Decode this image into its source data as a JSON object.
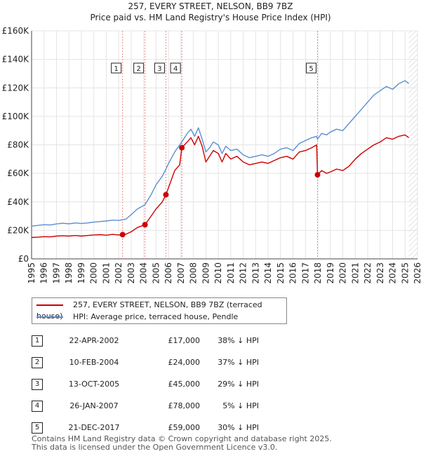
{
  "chart_data": {
    "type": "line",
    "title": "257, EVERY STREET, NELSON, BB9 7BZ",
    "subtitle": "Price paid vs. HM Land Registry's House Price Index (HPI)",
    "xlim": [
      1995,
      2026
    ],
    "ylim": [
      0,
      160000
    ],
    "y_ticks": [
      {
        "value": 0,
        "label": "£0"
      },
      {
        "value": 20000,
        "label": "£20K"
      },
      {
        "value": 40000,
        "label": "£40K"
      },
      {
        "value": 60000,
        "label": "£60K"
      },
      {
        "value": 80000,
        "label": "£80K"
      },
      {
        "value": 100000,
        "label": "£100K"
      },
      {
        "value": 120000,
        "label": "£120K"
      },
      {
        "value": 140000,
        "label": "£140K"
      },
      {
        "value": 160000,
        "label": "£160K"
      }
    ],
    "x_ticks": [
      "1995",
      "1996",
      "1997",
      "1998",
      "1999",
      "2000",
      "2001",
      "2002",
      "2003",
      "2004",
      "2005",
      "2006",
      "2007",
      "2008",
      "2009",
      "2010",
      "2011",
      "2012",
      "2013",
      "2014",
      "2015",
      "2016",
      "2017",
      "2018",
      "2019",
      "2020",
      "2021",
      "2022",
      "2023",
      "2024",
      "2025",
      "2026"
    ],
    "series": [
      {
        "name": "257, EVERY STREET, NELSON, BB9 7BZ (terraced house)",
        "color": "#cc0000",
        "points": [
          [
            1995.0,
            15000
          ],
          [
            1995.5,
            15200
          ],
          [
            1996.0,
            15600
          ],
          [
            1996.5,
            15400
          ],
          [
            1997.0,
            16000
          ],
          [
            1997.5,
            16200
          ],
          [
            1998.0,
            16000
          ],
          [
            1998.5,
            16400
          ],
          [
            1999.0,
            16000
          ],
          [
            1999.5,
            16400
          ],
          [
            2000.0,
            16800
          ],
          [
            2000.5,
            17000
          ],
          [
            2001.0,
            16600
          ],
          [
            2001.5,
            17200
          ],
          [
            2002.0,
            16800
          ],
          [
            2002.31,
            17000
          ],
          [
            2002.6,
            17400
          ],
          [
            2003.0,
            19000
          ],
          [
            2003.5,
            22000
          ],
          [
            2004.11,
            24000
          ],
          [
            2004.6,
            30000
          ],
          [
            2005.0,
            35000
          ],
          [
            2005.5,
            40000
          ],
          [
            2005.79,
            45000
          ],
          [
            2006.0,
            50000
          ],
          [
            2006.5,
            62000
          ],
          [
            2006.9,
            66000
          ],
          [
            2007.07,
            78000
          ],
          [
            2007.5,
            82000
          ],
          [
            2007.8,
            85000
          ],
          [
            2008.1,
            80000
          ],
          [
            2008.4,
            86000
          ],
          [
            2008.7,
            79000
          ],
          [
            2009.0,
            68000
          ],
          [
            2009.3,
            72000
          ],
          [
            2009.6,
            76000
          ],
          [
            2010.0,
            74000
          ],
          [
            2010.3,
            68000
          ],
          [
            2010.6,
            74000
          ],
          [
            2011.0,
            70000
          ],
          [
            2011.5,
            72000
          ],
          [
            2012.0,
            68000
          ],
          [
            2012.5,
            66000
          ],
          [
            2013.0,
            67000
          ],
          [
            2013.5,
            68000
          ],
          [
            2014.0,
            67000
          ],
          [
            2014.5,
            69000
          ],
          [
            2015.0,
            71000
          ],
          [
            2015.5,
            72000
          ],
          [
            2016.0,
            70000
          ],
          [
            2016.5,
            75000
          ],
          [
            2017.0,
            76000
          ],
          [
            2017.5,
            78000
          ],
          [
            2017.9,
            80000
          ],
          [
            2017.97,
            59000
          ],
          [
            2018.3,
            62000
          ],
          [
            2018.7,
            60000
          ],
          [
            2019.0,
            61000
          ],
          [
            2019.5,
            63000
          ],
          [
            2020.0,
            62000
          ],
          [
            2020.5,
            65000
          ],
          [
            2021.0,
            70000
          ],
          [
            2021.5,
            74000
          ],
          [
            2022.0,
            77000
          ],
          [
            2022.5,
            80000
          ],
          [
            2023.0,
            82000
          ],
          [
            2023.5,
            85000
          ],
          [
            2024.0,
            84000
          ],
          [
            2024.5,
            86000
          ],
          [
            2025.0,
            87000
          ],
          [
            2025.3,
            85000
          ]
        ]
      },
      {
        "name": "HPI: Average price, terraced house, Pendle",
        "color": "#5b8fd0",
        "points": [
          [
            1995.0,
            23000
          ],
          [
            1995.5,
            23500
          ],
          [
            1996.0,
            24000
          ],
          [
            1996.5,
            23800
          ],
          [
            1997.0,
            24500
          ],
          [
            1997.5,
            25000
          ],
          [
            1998.0,
            24600
          ],
          [
            1998.5,
            25200
          ],
          [
            1999.0,
            24800
          ],
          [
            1999.5,
            25200
          ],
          [
            2000.0,
            25800
          ],
          [
            2000.5,
            26200
          ],
          [
            2001.0,
            26600
          ],
          [
            2001.5,
            27200
          ],
          [
            2002.0,
            27000
          ],
          [
            2002.31,
            27400
          ],
          [
            2002.6,
            28000
          ],
          [
            2003.0,
            31000
          ],
          [
            2003.5,
            35000
          ],
          [
            2004.11,
            38000
          ],
          [
            2004.6,
            45000
          ],
          [
            2005.0,
            52000
          ],
          [
            2005.5,
            58000
          ],
          [
            2005.79,
            63000
          ],
          [
            2006.0,
            67000
          ],
          [
            2006.5,
            75000
          ],
          [
            2006.9,
            80000
          ],
          [
            2007.07,
            82000
          ],
          [
            2007.5,
            88000
          ],
          [
            2007.8,
            91000
          ],
          [
            2008.1,
            86000
          ],
          [
            2008.4,
            92000
          ],
          [
            2008.7,
            84000
          ],
          [
            2009.0,
            75000
          ],
          [
            2009.3,
            78000
          ],
          [
            2009.6,
            82000
          ],
          [
            2010.0,
            80000
          ],
          [
            2010.3,
            74000
          ],
          [
            2010.6,
            79000
          ],
          [
            2011.0,
            76000
          ],
          [
            2011.5,
            77000
          ],
          [
            2012.0,
            73000
          ],
          [
            2012.5,
            71000
          ],
          [
            2013.0,
            72000
          ],
          [
            2013.5,
            73000
          ],
          [
            2014.0,
            72000
          ],
          [
            2014.5,
            74000
          ],
          [
            2015.0,
            77000
          ],
          [
            2015.5,
            78000
          ],
          [
            2016.0,
            76000
          ],
          [
            2016.5,
            81000
          ],
          [
            2017.0,
            83000
          ],
          [
            2017.5,
            85000
          ],
          [
            2017.9,
            86000
          ],
          [
            2017.97,
            84000
          ],
          [
            2018.3,
            88000
          ],
          [
            2018.7,
            87000
          ],
          [
            2019.0,
            89000
          ],
          [
            2019.5,
            91000
          ],
          [
            2020.0,
            90000
          ],
          [
            2020.5,
            95000
          ],
          [
            2021.0,
            100000
          ],
          [
            2021.5,
            105000
          ],
          [
            2022.0,
            110000
          ],
          [
            2022.5,
            115000
          ],
          [
            2023.0,
            118000
          ],
          [
            2023.5,
            121000
          ],
          [
            2024.0,
            119000
          ],
          [
            2024.5,
            123000
          ],
          [
            2025.0,
            125000
          ],
          [
            2025.3,
            123000
          ]
        ]
      }
    ],
    "sales": [
      {
        "n": "1",
        "x": 2002.31,
        "price": 17000
      },
      {
        "n": "2",
        "x": 2004.11,
        "price": 24000
      },
      {
        "n": "3",
        "x": 2005.79,
        "price": 45000
      },
      {
        "n": "4",
        "x": 2007.07,
        "price": 78000
      },
      {
        "n": "5",
        "x": 2017.97,
        "price": 59000
      }
    ]
  },
  "legend": {
    "items": [
      {
        "label": "257, EVERY STREET, NELSON, BB9 7BZ (terraced house)",
        "color": "#cc0000"
      },
      {
        "label": "HPI: Average price, terraced house, Pendle",
        "color": "#5b8fd0"
      }
    ]
  },
  "table": {
    "rows": [
      {
        "n": "1",
        "date": "22-APR-2002",
        "price": "£17,000",
        "hpi": "38% ↓ HPI"
      },
      {
        "n": "2",
        "date": "10-FEB-2004",
        "price": "£24,000",
        "hpi": "37% ↓ HPI"
      },
      {
        "n": "3",
        "date": "13-OCT-2005",
        "price": "£45,000",
        "hpi": "29% ↓ HPI"
      },
      {
        "n": "4",
        "date": "26-JAN-2007",
        "price": "£78,000",
        "hpi": "5% ↓ HPI"
      },
      {
        "n": "5",
        "date": "21-DEC-2017",
        "price": "£59,000",
        "hpi": "30% ↓ HPI"
      }
    ]
  },
  "footer": {
    "line1": "Contains HM Land Registry data © Crown copyright and database right 2025.",
    "line2": "This data is licensed under the Open Government Licence v3.0."
  }
}
